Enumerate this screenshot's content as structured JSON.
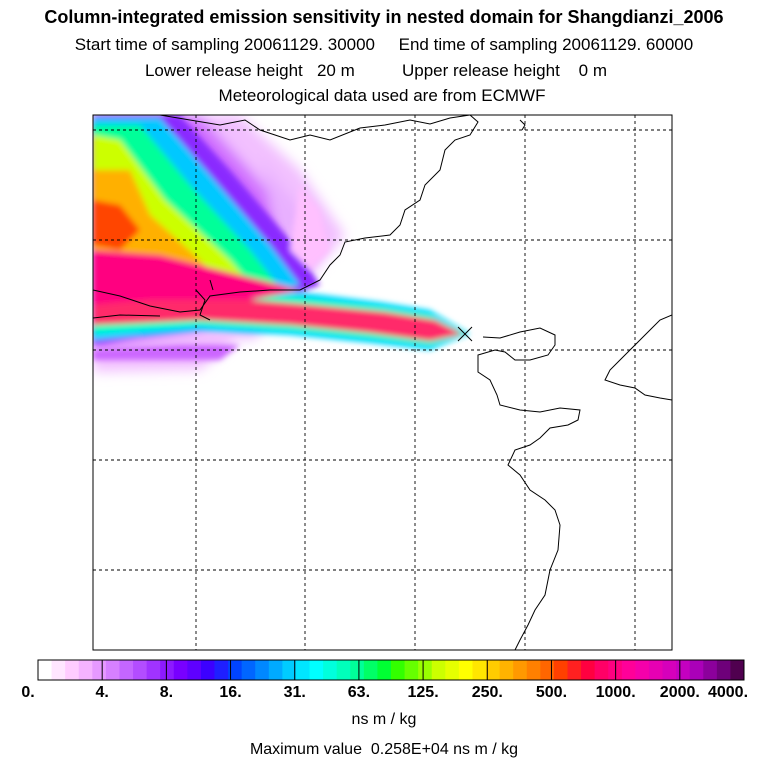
{
  "header": {
    "title": "Column-integrated emission sensitivity in nested domain for Shangdianzi_2006",
    "subtitle_1": "Start time of sampling 20061129. 30000     End time of sampling 20061129. 60000",
    "subtitle_2": "Lower release height   20 m          Upper release height    0 m",
    "subtitle_3": "Meteorological data used are from ECMWF"
  },
  "map": {
    "release_marker": "x-marker",
    "plume_colors": [
      "#ff00ff",
      "#aa00ff",
      "#3030ff",
      "#00c8ff",
      "#00ffcc",
      "#40ff00",
      "#e0ff00",
      "#ffb000",
      "#ff4000",
      "#ff0080"
    ]
  },
  "colorbar": {
    "tick_labels": [
      "0.",
      "4.",
      "8.",
      "16.",
      "31.",
      "63.",
      "125.",
      "250.",
      "500.",
      "1000.",
      "2000.",
      "4000."
    ],
    "colors": [
      "#ffffff",
      "#ffe6ff",
      "#ffccff",
      "#f5b3ff",
      "#e699ff",
      "#d680ff",
      "#c466ff",
      "#b34dff",
      "#a033ff",
      "#8c1aff",
      "#7800ff",
      "#5f00ff",
      "#3c00ff",
      "#1f1fff",
      "#0044ff",
      "#0066ff",
      "#0088ff",
      "#00aaff",
      "#00ccff",
      "#00e6ff",
      "#00ffff",
      "#00ffdd",
      "#00ffbb",
      "#00ff99",
      "#00ff66",
      "#00ff33",
      "#33ff00",
      "#66ff00",
      "#99ff00",
      "#ccff00",
      "#e6ff00",
      "#ffff00",
      "#ffe600",
      "#ffcc00",
      "#ffb300",
      "#ff9900",
      "#ff8000",
      "#ff6600",
      "#ff4000",
      "#ff2020",
      "#ff0040",
      "#ff0066",
      "#ff0080",
      "#ff0099",
      "#f500aa",
      "#e600b3",
      "#d600bb",
      "#c400c0",
      "#aa00b8",
      "#8c009c",
      "#6e007a",
      "#50004f"
    ],
    "unit": "ns m / kg"
  },
  "footer": {
    "max_value": "Maximum value  0.258E+04 ns m / kg"
  }
}
